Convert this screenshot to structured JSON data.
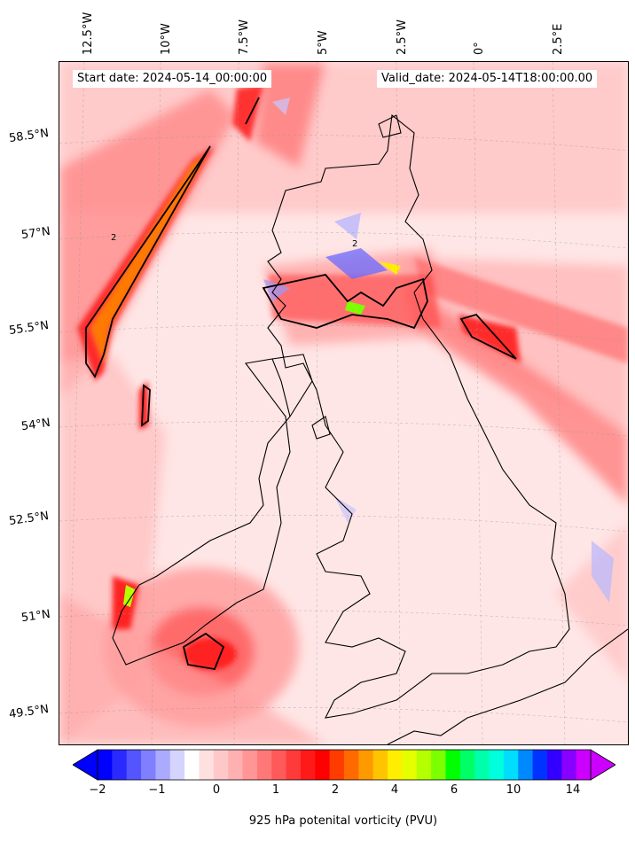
{
  "map": {
    "start_date": "Start date: 2024-05-14_00:00:00",
    "valid_date": "Valid_date: 2024-05-14T18:00:00.00",
    "lon_labels": [
      "12.5°W",
      "10°W",
      "7.5°W",
      "5°W",
      "2.5°W",
      "0°",
      "2.5°E"
    ],
    "lat_labels": [
      "58.5°N",
      "57°N",
      "55.5°N",
      "54°N",
      "52.5°N",
      "51°N",
      "49.5°N"
    ],
    "contour_label": "2"
  },
  "colorbar": {
    "label": "925 hPa potenital vorticity (PVU)",
    "ticks": [
      "−2",
      "−1",
      "0",
      "1",
      "2",
      "4",
      "6",
      "10",
      "14"
    ],
    "colors": [
      "#0000ff",
      "#2a2aff",
      "#5555ff",
      "#7f7fff",
      "#aaaaff",
      "#d4d4ff",
      "#ffffff",
      "#ffe0e0",
      "#ffc8c8",
      "#ffb0b0",
      "#ff9595",
      "#ff7878",
      "#ff5a5a",
      "#ff3a3a",
      "#ff1a1a",
      "#ff0000",
      "#ff3c00",
      "#ff6a00",
      "#ff9900",
      "#ffc400",
      "#ffee00",
      "#e4ff00",
      "#b4ff00",
      "#7cff00",
      "#00ff00",
      "#00ff66",
      "#00ffaa",
      "#00ffdd",
      "#00ddff",
      "#0088ff",
      "#0033ff",
      "#3300ff",
      "#8800ff",
      "#cc00ff"
    ]
  }
}
